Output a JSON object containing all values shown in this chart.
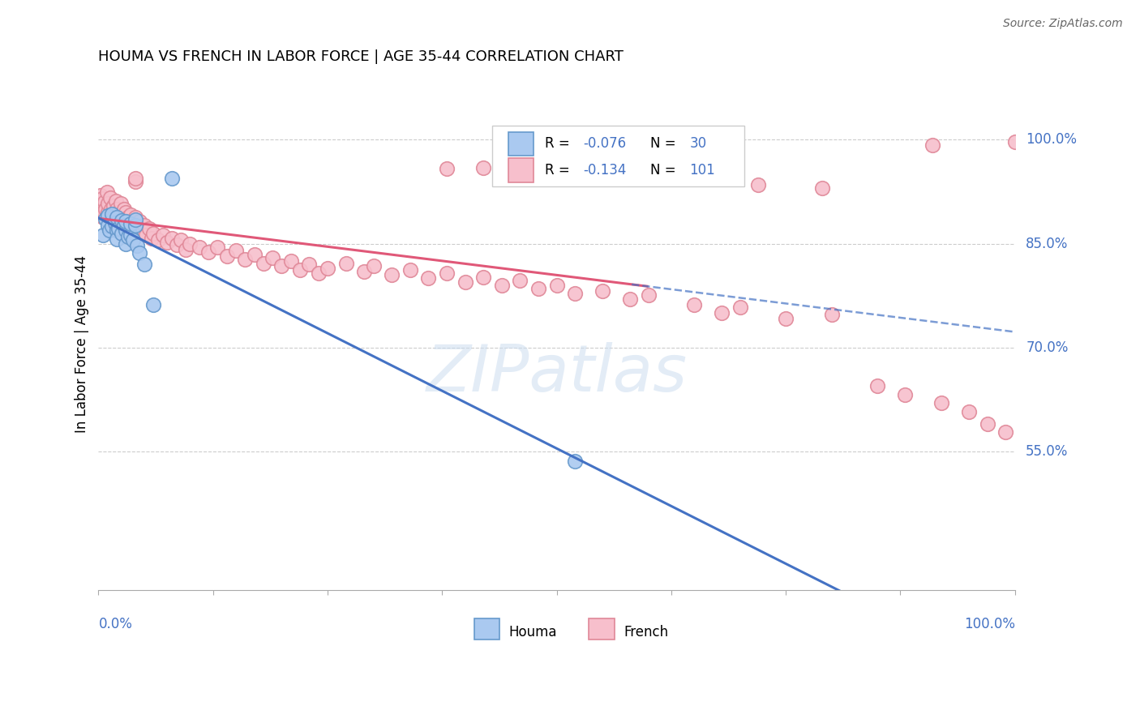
{
  "title": "HOUMA VS FRENCH IN LABOR FORCE | AGE 35-44 CORRELATION CHART",
  "source": "Source: ZipAtlas.com",
  "ylabel": "In Labor Force | Age 35-44",
  "legend_houma": "Houma",
  "legend_french": "French",
  "r_houma": -0.076,
  "n_houma": 30,
  "r_french": -0.134,
  "n_french": 101,
  "ytick_values": [
    0.55,
    0.7,
    0.85,
    1.0
  ],
  "ytick_labels": [
    "55.0%",
    "70.0%",
    "85.0%",
    "100.0%"
  ],
  "color_houma_fill": "#aac9f0",
  "color_houma_edge": "#6699cc",
  "color_french_fill": "#f7bfcc",
  "color_french_edge": "#e08898",
  "color_houma_line": "#4472c4",
  "color_french_line": "#e05878",
  "color_blue_text": "#4472c4",
  "background_color": "#ffffff",
  "grid_color": "#cccccc",
  "houma_x": [
    0.005,
    0.008,
    0.01,
    0.01,
    0.012,
    0.015,
    0.015,
    0.018,
    0.02,
    0.02,
    0.02,
    0.022,
    0.025,
    0.025,
    0.028,
    0.03,
    0.03,
    0.03,
    0.032,
    0.035,
    0.035,
    0.038,
    0.04,
    0.04,
    0.042,
    0.045,
    0.05,
    0.06,
    0.08,
    0.52
  ],
  "houma_y": [
    0.862,
    0.886,
    0.877,
    0.891,
    0.869,
    0.875,
    0.893,
    0.88,
    0.87,
    0.888,
    0.857,
    0.872,
    0.865,
    0.883,
    0.876,
    0.85,
    0.869,
    0.882,
    0.86,
    0.862,
    0.879,
    0.855,
    0.877,
    0.885,
    0.847,
    0.837,
    0.82,
    0.762,
    0.945,
    0.536
  ],
  "french_x": [
    0.002,
    0.003,
    0.004,
    0.005,
    0.006,
    0.007,
    0.008,
    0.009,
    0.01,
    0.01,
    0.012,
    0.013,
    0.014,
    0.015,
    0.016,
    0.017,
    0.018,
    0.019,
    0.02,
    0.02,
    0.022,
    0.024,
    0.025,
    0.027,
    0.028,
    0.03,
    0.03,
    0.032,
    0.034,
    0.035,
    0.038,
    0.04,
    0.04,
    0.042,
    0.045,
    0.048,
    0.05,
    0.052,
    0.055,
    0.058,
    0.06,
    0.065,
    0.07,
    0.075,
    0.08,
    0.085,
    0.09,
    0.095,
    0.1,
    0.11,
    0.12,
    0.13,
    0.14,
    0.15,
    0.16,
    0.17,
    0.18,
    0.19,
    0.2,
    0.21,
    0.22,
    0.23,
    0.24,
    0.25,
    0.27,
    0.29,
    0.3,
    0.32,
    0.34,
    0.36,
    0.38,
    0.38,
    0.4,
    0.42,
    0.42,
    0.44,
    0.46,
    0.48,
    0.5,
    0.52,
    0.55,
    0.58,
    0.6,
    0.63,
    0.65,
    0.68,
    0.7,
    0.72,
    0.75,
    0.79,
    0.8,
    0.85,
    0.88,
    0.91,
    0.92,
    0.95,
    0.97,
    0.99,
    1.0,
    0.04,
    0.04
  ],
  "french_y": [
    0.92,
    0.905,
    0.915,
    0.888,
    0.896,
    0.91,
    0.9,
    0.925,
    0.895,
    0.908,
    0.882,
    0.916,
    0.9,
    0.892,
    0.905,
    0.888,
    0.895,
    0.912,
    0.87,
    0.9,
    0.895,
    0.908,
    0.885,
    0.892,
    0.9,
    0.88,
    0.895,
    0.888,
    0.875,
    0.892,
    0.88,
    0.875,
    0.888,
    0.87,
    0.882,
    0.868,
    0.876,
    0.862,
    0.872,
    0.858,
    0.865,
    0.855,
    0.862,
    0.852,
    0.858,
    0.848,
    0.855,
    0.842,
    0.85,
    0.845,
    0.838,
    0.845,
    0.832,
    0.84,
    0.828,
    0.835,
    0.822,
    0.83,
    0.818,
    0.825,
    0.812,
    0.82,
    0.808,
    0.815,
    0.822,
    0.81,
    0.818,
    0.805,
    0.812,
    0.8,
    0.958,
    0.808,
    0.795,
    0.96,
    0.802,
    0.79,
    0.797,
    0.785,
    0.79,
    0.778,
    0.782,
    0.77,
    0.776,
    0.956,
    0.762,
    0.75,
    0.758,
    0.935,
    0.742,
    0.93,
    0.748,
    0.645,
    0.632,
    0.992,
    0.62,
    0.608,
    0.59,
    0.578,
    0.997,
    0.94,
    0.945
  ]
}
